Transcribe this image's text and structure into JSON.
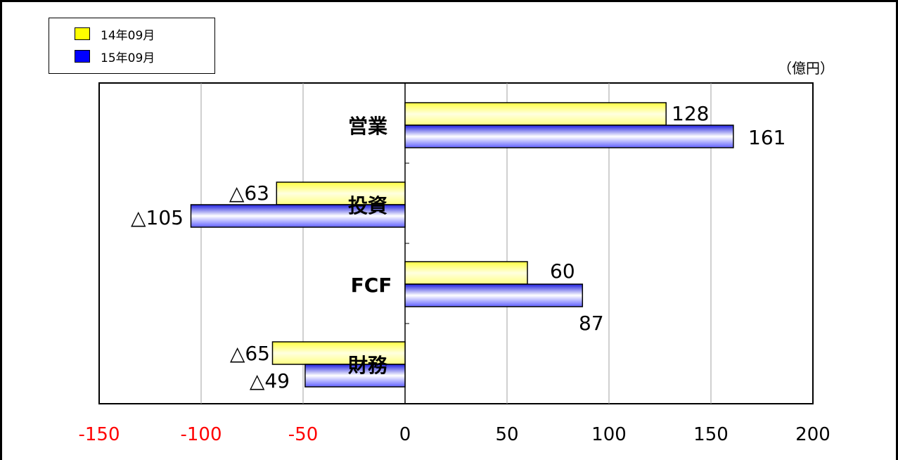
{
  "unit_label": "（億円）",
  "colors": {
    "series_2014": "#ffff00",
    "series_2015": "#0000ff",
    "negative_tick": "#ff0000",
    "positive_tick": "#000000",
    "grid": "#a0a0a0"
  },
  "chart_data": {
    "type": "bar",
    "orientation": "horizontal",
    "categories": [
      "営業",
      "投資",
      "FCF",
      "財務"
    ],
    "series": [
      {
        "name": "14年09月",
        "color": "#ffff00",
        "values": [
          128,
          -63,
          60,
          -65
        ],
        "labels": [
          "128",
          "△63",
          "60",
          "△65"
        ]
      },
      {
        "name": "15年09月",
        "color": "#0000ff",
        "values": [
          161,
          -105,
          87,
          -49
        ],
        "labels": [
          "161",
          "△105",
          "87",
          "△49"
        ]
      }
    ],
    "xlim": [
      -150,
      200
    ],
    "xticks": [
      -150,
      -100,
      -50,
      0,
      50,
      100,
      150,
      200
    ],
    "xtick_labels": [
      "-150",
      "-100",
      "-50",
      "0",
      "50",
      "100",
      "150",
      "200"
    ],
    "grid": "vertical",
    "legend": "top-left",
    "title": "",
    "xlabel": "",
    "ylabel": ""
  }
}
